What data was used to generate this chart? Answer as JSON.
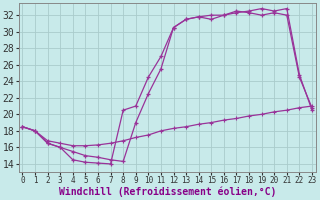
{
  "bg_color": "#c8eaea",
  "grid_color": "#aacccc",
  "line_color": "#993399",
  "xlabel": "Windchill (Refroidissement éolien,°C)",
  "xlabel_color": "#880088",
  "xlabel_fontsize": 7,
  "ytick_fontsize": 7,
  "xtick_fontsize": 5.5,
  "ylim": [
    13,
    33.5
  ],
  "xlim": [
    -0.3,
    23.3
  ],
  "yticks": [
    14,
    16,
    18,
    20,
    22,
    24,
    26,
    28,
    30,
    32
  ],
  "xticks": [
    0,
    1,
    2,
    3,
    4,
    5,
    6,
    7,
    8,
    9,
    10,
    11,
    12,
    13,
    14,
    15,
    16,
    17,
    18,
    19,
    20,
    21,
    22,
    23
  ],
  "line1_x": [
    0,
    1,
    2,
    3,
    4,
    5,
    6,
    7,
    8,
    9,
    10,
    11,
    12,
    13,
    14,
    15,
    16,
    17,
    18,
    19,
    20,
    21,
    22,
    23
  ],
  "line1_y": [
    18.5,
    18.0,
    16.5,
    16.0,
    14.5,
    14.2,
    14.1,
    14.0,
    20.5,
    21.0,
    24.5,
    27.0,
    30.5,
    31.5,
    31.8,
    31.5,
    32.0,
    32.5,
    32.3,
    32.0,
    32.3,
    32.0,
    24.5,
    20.8
  ],
  "line2_x": [
    0,
    1,
    2,
    3,
    4,
    5,
    6,
    7,
    8,
    9,
    10,
    11,
    12,
    13,
    14,
    15,
    16,
    17,
    18,
    19,
    20,
    21,
    22,
    23
  ],
  "line2_y": [
    18.5,
    18.0,
    16.5,
    16.0,
    15.5,
    15.0,
    14.8,
    14.5,
    14.3,
    19.0,
    22.5,
    25.5,
    30.5,
    31.5,
    31.8,
    32.0,
    32.0,
    32.3,
    32.5,
    32.8,
    32.5,
    32.8,
    24.8,
    20.5
  ],
  "line3_x": [
    0,
    1,
    2,
    3,
    4,
    5,
    6,
    7,
    8,
    9,
    10,
    11,
    12,
    13,
    14,
    15,
    16,
    17,
    18,
    19,
    20,
    21,
    22,
    23
  ],
  "line3_y": [
    18.5,
    18.0,
    16.8,
    16.5,
    16.2,
    16.2,
    16.3,
    16.5,
    16.8,
    17.2,
    17.5,
    18.0,
    18.3,
    18.5,
    18.8,
    19.0,
    19.3,
    19.5,
    19.8,
    20.0,
    20.3,
    20.5,
    20.8,
    21.0
  ]
}
